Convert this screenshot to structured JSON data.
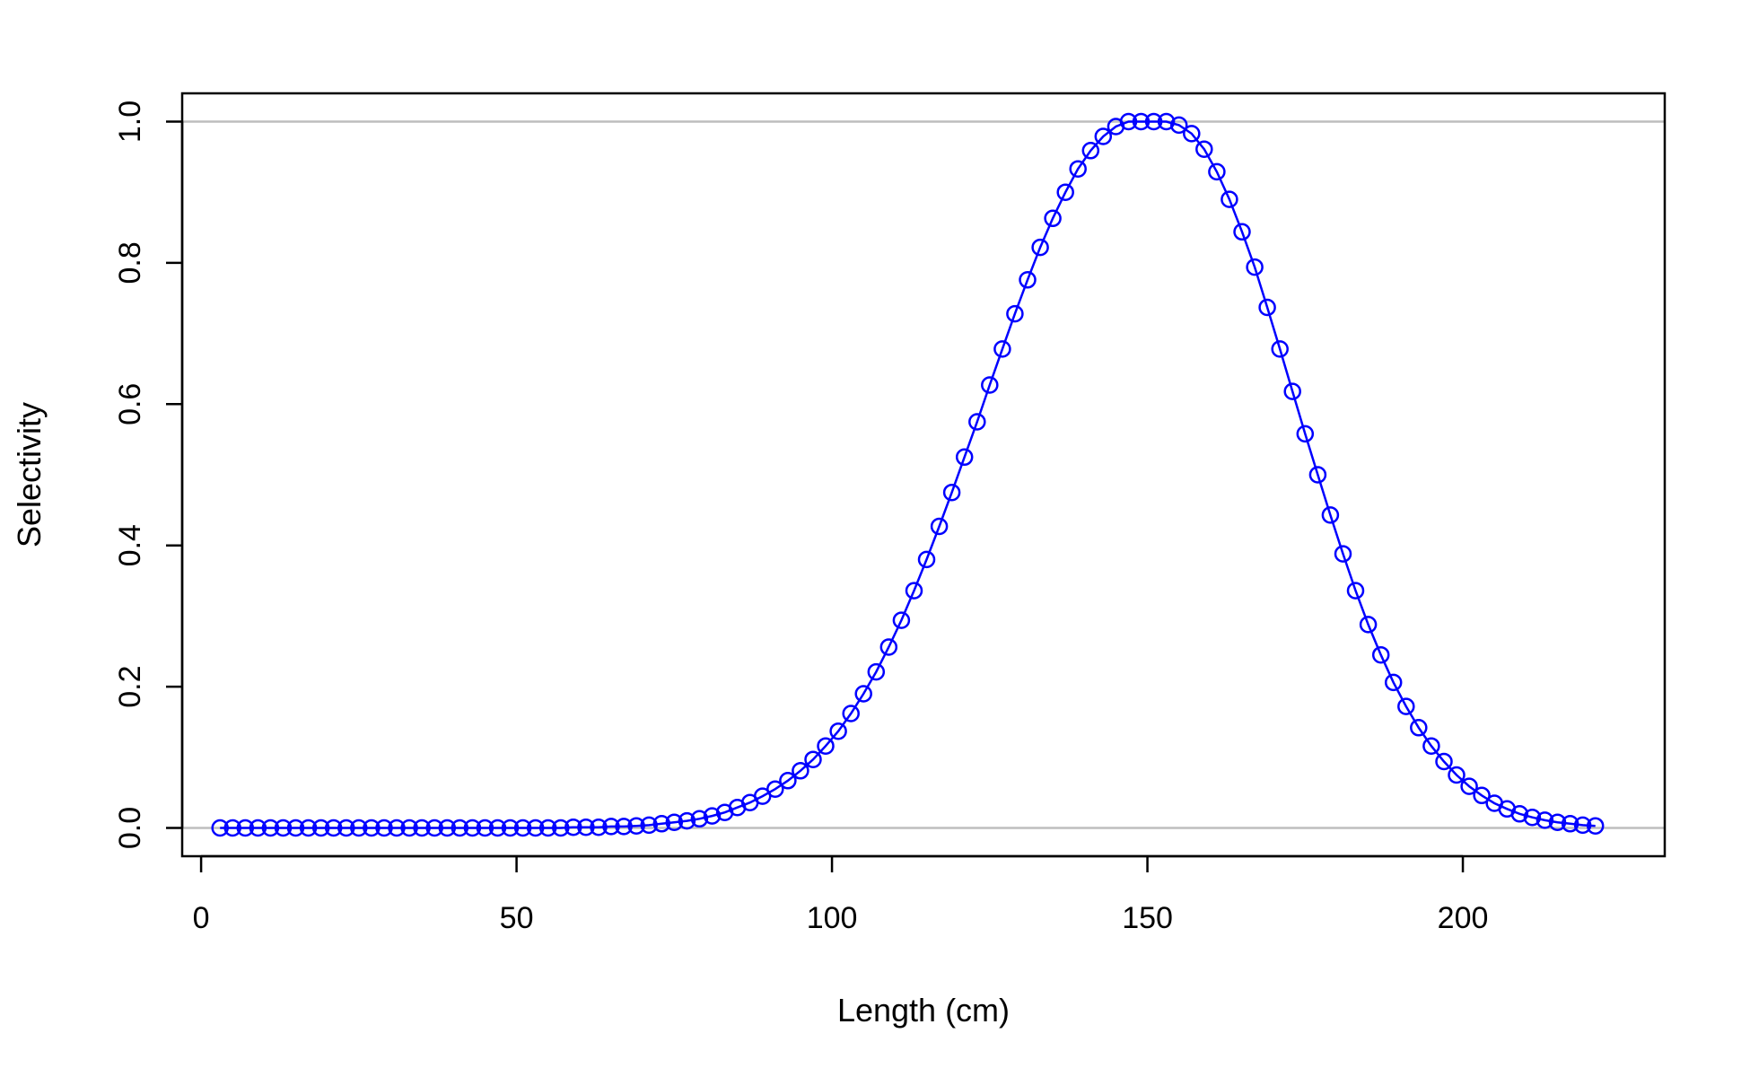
{
  "chart_data": {
    "type": "line",
    "title": "",
    "xlabel": "Length (cm)",
    "ylabel": "Selectivity",
    "xlim": [
      -3,
      232
    ],
    "ylim": [
      -0.04,
      1.04
    ],
    "x_ticks": [
      0,
      50,
      100,
      150,
      200
    ],
    "x_tick_labels": [
      "0",
      "50",
      "100",
      "150",
      "200"
    ],
    "y_ticks": [
      0,
      0.2,
      0.4,
      0.6,
      0.8,
      1
    ],
    "y_tick_labels": [
      "0.0",
      "0.2",
      "0.4",
      "0.6",
      "0.8",
      "1.0"
    ],
    "reference_lines_y": [
      0,
      1
    ],
    "grid": false,
    "legend": "none",
    "marker": "open-circle",
    "series": [
      {
        "color": "#0000ff",
        "reference_line_color": "#bebebe",
        "x": [
          3,
          5,
          7,
          9,
          11,
          13,
          15,
          17,
          19,
          21,
          23,
          25,
          27,
          29,
          31,
          33,
          35,
          37,
          39,
          41,
          43,
          45,
          47,
          49,
          51,
          53,
          55,
          57,
          59,
          61,
          63,
          65,
          67,
          69,
          71,
          73,
          75,
          77,
          79,
          81,
          83,
          85,
          87,
          89,
          91,
          93,
          95,
          97,
          99,
          101,
          103,
          105,
          107,
          109,
          111,
          113,
          115,
          117,
          119,
          121,
          123,
          125,
          127,
          129,
          131,
          133,
          135,
          137,
          139,
          141,
          143,
          145,
          147,
          149,
          151,
          153,
          155,
          157,
          159,
          161,
          163,
          165,
          167,
          169,
          171,
          173,
          175,
          177,
          179,
          181,
          183,
          185,
          187,
          189,
          191,
          193,
          195,
          197,
          199,
          201,
          203,
          205,
          207,
          209,
          211,
          213,
          215,
          217,
          219,
          221
        ],
        "y": [
          0.0,
          0.0,
          0.0,
          0.0,
          0.0,
          0.0,
          0.0,
          0.0,
          0.0,
          0.0,
          0.0,
          0.0,
          0.0,
          0.0,
          0.0,
          0.0,
          0.0,
          0.0,
          0.0,
          0.0,
          0.0,
          0.0,
          0.0,
          0.0,
          0.0,
          0.0,
          0.0,
          0.0,
          0.001,
          0.001,
          0.001,
          0.002,
          0.002,
          0.003,
          0.004,
          0.006,
          0.008,
          0.01,
          0.013,
          0.017,
          0.022,
          0.029,
          0.036,
          0.045,
          0.055,
          0.067,
          0.081,
          0.097,
          0.116,
          0.137,
          0.162,
          0.19,
          0.221,
          0.256,
          0.294,
          0.336,
          0.38,
          0.427,
          0.475,
          0.525,
          0.575,
          0.627,
          0.678,
          0.728,
          0.776,
          0.822,
          0.863,
          0.9,
          0.933,
          0.959,
          0.979,
          0.993,
          1.0,
          1.0,
          1.0,
          1.0,
          0.995,
          0.983,
          0.961,
          0.929,
          0.89,
          0.844,
          0.794,
          0.737,
          0.678,
          0.618,
          0.558,
          0.5,
          0.443,
          0.388,
          0.336,
          0.288,
          0.245,
          0.206,
          0.172,
          0.142,
          0.116,
          0.094,
          0.075,
          0.059,
          0.046,
          0.035,
          0.027,
          0.02,
          0.015,
          0.011,
          0.008,
          0.006,
          0.004,
          0.003
        ]
      }
    ]
  }
}
